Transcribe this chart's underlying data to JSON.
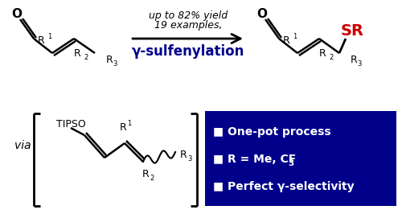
{
  "bg_color": "#ffffff",
  "blue_box_color": "#00008B",
  "reaction_label": "γ-sulfenylation",
  "reaction_label_color": "#00008B",
  "examples_line1": "19 examples,",
  "examples_line2": "up to 82% yield",
  "via_text": "via",
  "bullet_lines": [
    "■ One-pot process",
    "■ R = Me, CF",
    "■ Perfect γ-selectivity"
  ],
  "bullet_color": "#ffffff",
  "SR_color": "#cc0000",
  "dark_blue": "#00008B",
  "black": "#000000",
  "gray": "#555555"
}
